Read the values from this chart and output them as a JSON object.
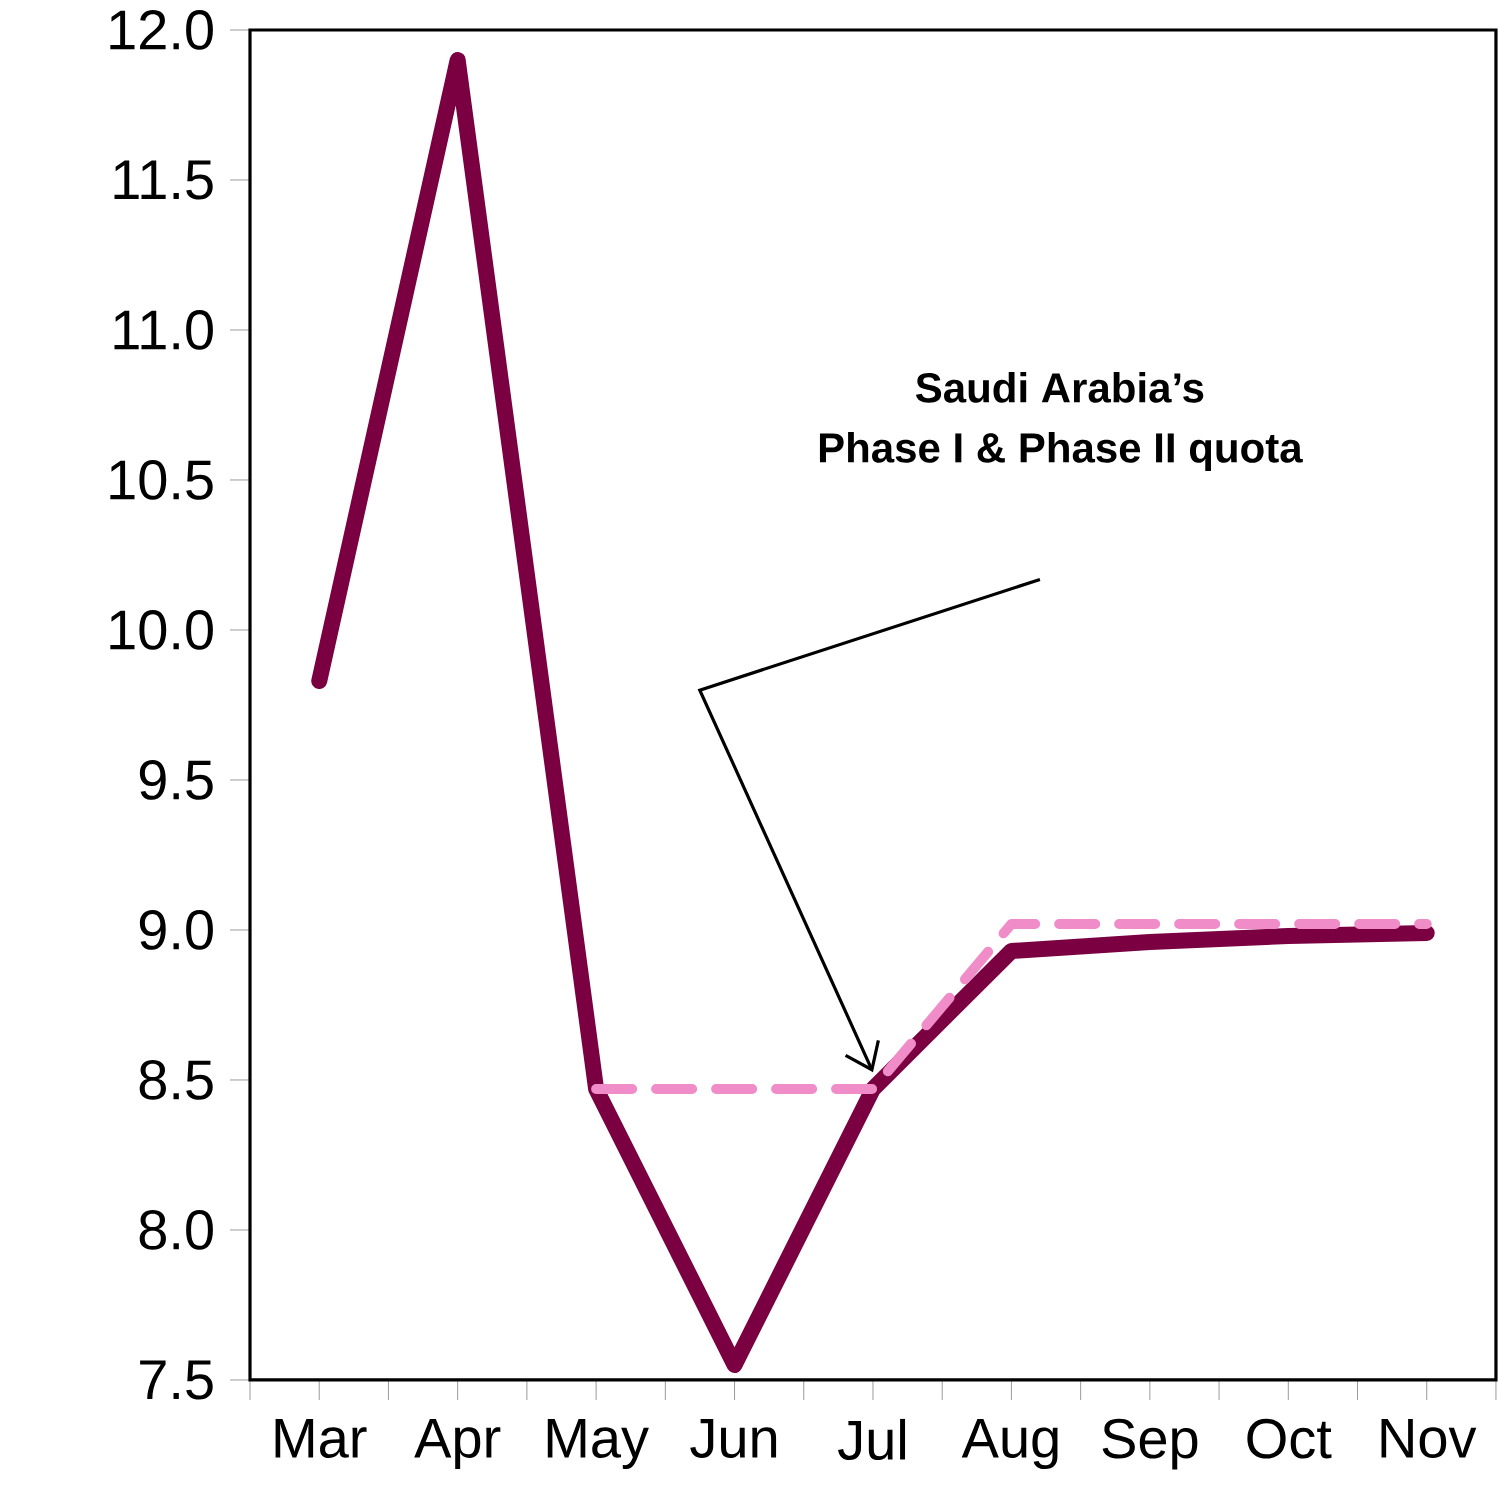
{
  "chart_data": {
    "type": "line",
    "categories": [
      "Mar",
      "Apr",
      "May",
      "Jun",
      "Jul",
      "Aug",
      "Sep",
      "Oct",
      "Nov"
    ],
    "series": [
      {
        "color": "#7b0041",
        "values": [
          9.83,
          11.9,
          8.47,
          7.55,
          8.47,
          8.93,
          8.96,
          8.98,
          8.99
        ]
      },
      {
        "color": "#f08cc8",
        "line_style": "dashed",
        "values": [
          null,
          null,
          8.47,
          8.47,
          8.47,
          9.02,
          9.02,
          9.02,
          9.02
        ]
      }
    ],
    "ylim": [
      7.5,
      12.0
    ],
    "yticks": [
      {
        "value": 7.5,
        "label": "7.5"
      },
      {
        "value": 8,
        "label": "8.0"
      },
      {
        "value": 8.5,
        "label": "8.5"
      },
      {
        "value": 9,
        "label": "9.0"
      },
      {
        "value": 9.5,
        "label": "9.5"
      },
      {
        "value": 10,
        "label": "10.0"
      },
      {
        "value": 10.5,
        "label": "10.5"
      },
      {
        "value": 11,
        "label": "11.0"
      },
      {
        "value": 11.5,
        "label": "11.5"
      },
      {
        "value": 12,
        "label": "12.0"
      }
    ],
    "grid": false,
    "annotations": [
      "Saudi Arabia’s",
      "Phase I & Phase II quota"
    ]
  }
}
